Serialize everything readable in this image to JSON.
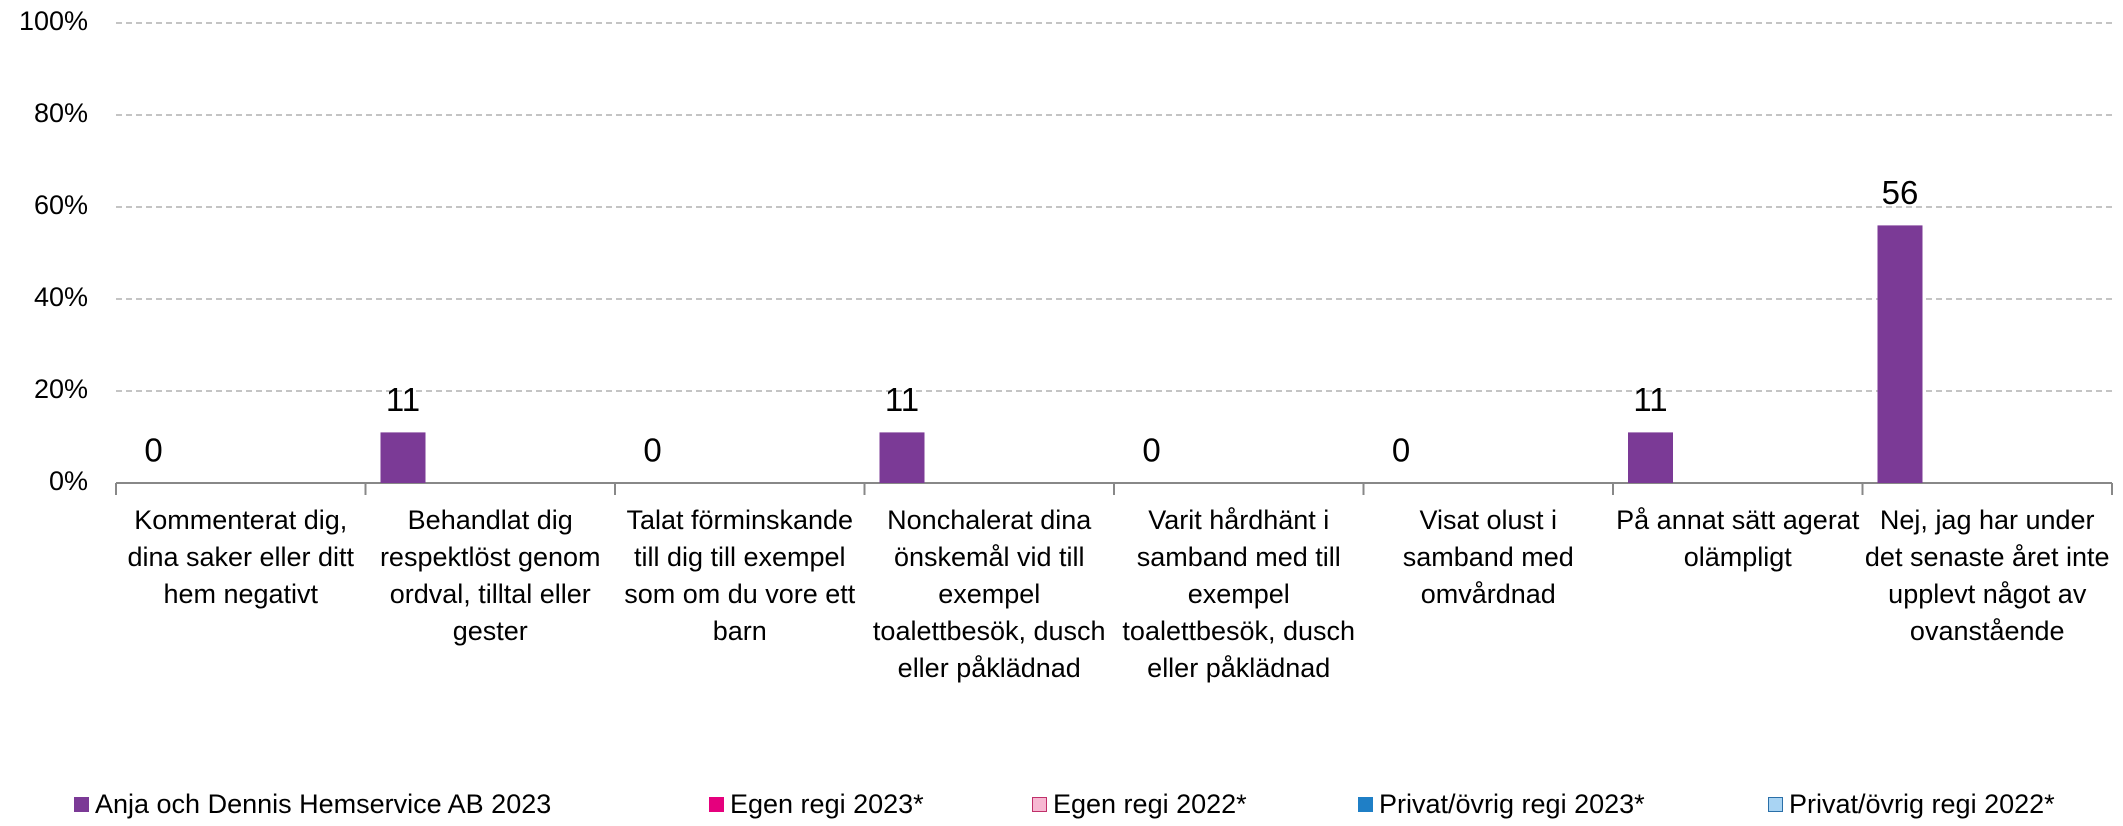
{
  "chart_data": {
    "type": "bar",
    "categories": [
      "Kommenterat dig, dina saker eller ditt hem negativt",
      "Behandlat dig respektlöst genom ordval, tilltal eller gester",
      "Talat förminskande till dig till exempel som om du vore ett barn",
      "Nonchalerat dina önskemål vid till exempel toalettbesök, dusch eller påklädnad",
      "Varit hårdhänt i samband med till exempel toalettbesök, dusch eller påklädnad",
      "Visat olust i samband med omvårdnad",
      "På annat sätt agerat olämpligt",
      "Nej, jag har under det senaste året inte upplevt något av ovanstående"
    ],
    "series": [
      {
        "name": "Anja och Dennis Hemservice AB 2023",
        "color": "#7b3a96",
        "values": [
          0,
          11,
          0,
          11,
          0,
          0,
          11,
          56
        ]
      },
      {
        "name": "Egen regi 2023*",
        "color": "#e5007d",
        "values": [
          null,
          null,
          null,
          null,
          null,
          null,
          null,
          null
        ]
      },
      {
        "name": "Egen regi 2022*",
        "color": "#f7b8d2",
        "values": [
          null,
          null,
          null,
          null,
          null,
          null,
          null,
          null
        ]
      },
      {
        "name": "Privat/övrig regi 2023*",
        "color": "#1f7fc6",
        "values": [
          null,
          null,
          null,
          null,
          null,
          null,
          null,
          null
        ]
      },
      {
        "name": "Privat/övrig regi 2022*",
        "color": "#a9d4f3",
        "values": [
          null,
          null,
          null,
          null,
          null,
          null,
          null,
          null
        ]
      }
    ],
    "ylim": [
      0,
      100
    ],
    "yticks": [
      {
        "value": 0,
        "label": "0%"
      },
      {
        "value": 20,
        "label": "20%"
      },
      {
        "value": 40,
        "label": "40%"
      },
      {
        "value": 60,
        "label": "60%"
      },
      {
        "value": 80,
        "label": "80%"
      },
      {
        "value": 100,
        "label": "100%"
      }
    ],
    "grid": true,
    "legend": "bottom"
  }
}
